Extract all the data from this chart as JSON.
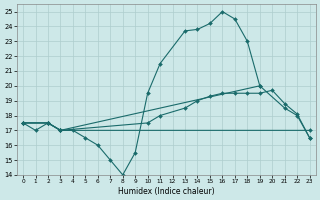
{
  "xlabel": "Humidex (Indice chaleur)",
  "xlim": [
    -0.5,
    23.5
  ],
  "ylim": [
    14,
    25.5
  ],
  "yticks": [
    14,
    15,
    16,
    17,
    18,
    19,
    20,
    21,
    22,
    23,
    24,
    25
  ],
  "xticks": [
    0,
    1,
    2,
    3,
    4,
    5,
    6,
    7,
    8,
    9,
    10,
    11,
    12,
    13,
    14,
    15,
    16,
    17,
    18,
    19,
    20,
    21,
    22,
    23
  ],
  "bg_color": "#cde8e8",
  "grid_color": "#aecece",
  "line_color": "#1a6b6b",
  "line1_x": [
    0,
    1,
    2,
    3,
    4,
    5,
    6,
    7,
    8,
    9,
    10,
    11,
    13,
    14,
    15,
    16,
    17,
    18,
    19
  ],
  "line1_y": [
    17.5,
    17.0,
    17.5,
    17.0,
    17.0,
    16.5,
    16.0,
    15.0,
    14.0,
    15.5,
    19.5,
    21.5,
    23.7,
    23.8,
    24.2,
    25.0,
    24.5,
    23.0,
    20.0
  ],
  "line2_x": [
    0,
    2,
    3,
    19,
    21,
    22,
    23
  ],
  "line2_y": [
    17.5,
    17.5,
    17.0,
    20.0,
    18.5,
    18.0,
    16.5
  ],
  "line3_x": [
    0,
    2,
    3,
    10,
    11,
    13,
    14,
    15,
    16,
    17,
    18,
    19,
    20,
    21,
    22,
    23
  ],
  "line3_y": [
    17.5,
    17.5,
    17.0,
    17.5,
    18.0,
    18.5,
    19.0,
    19.3,
    19.5,
    19.5,
    19.5,
    19.5,
    19.7,
    18.8,
    18.1,
    16.5
  ],
  "line4_x": [
    0,
    2,
    3,
    23
  ],
  "line4_y": [
    17.5,
    17.5,
    17.0,
    17.0
  ]
}
